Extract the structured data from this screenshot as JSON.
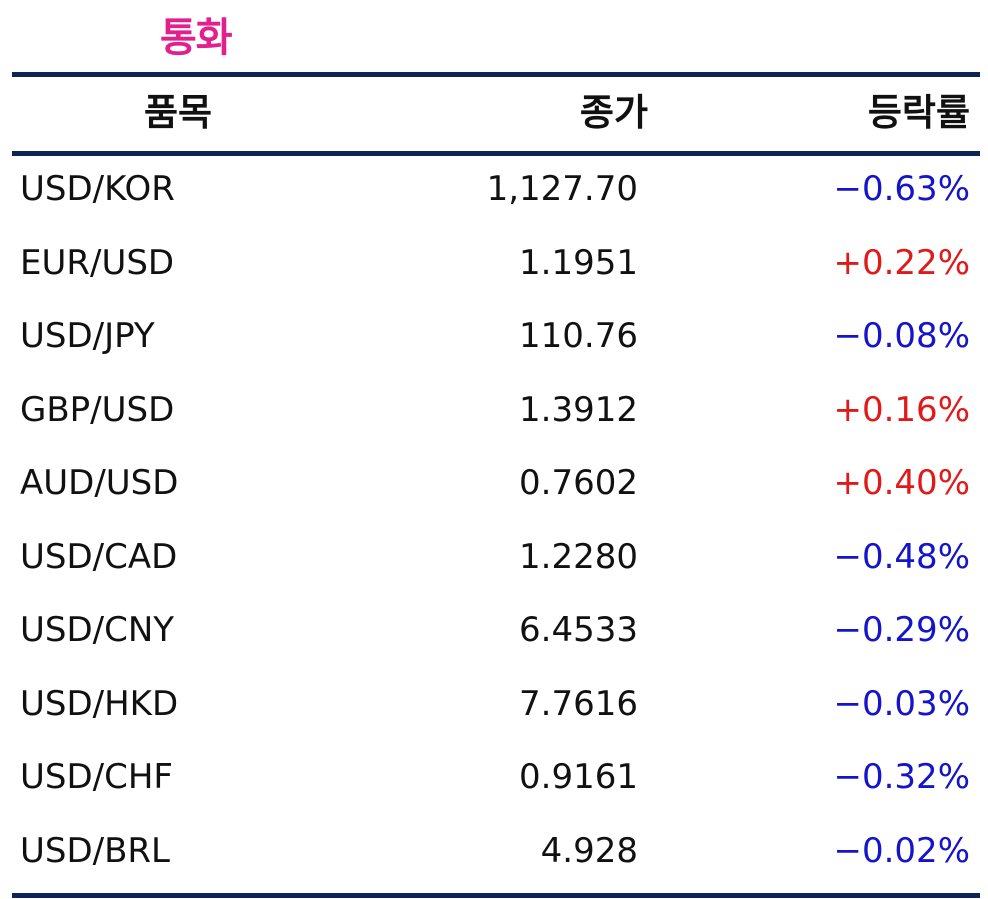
{
  "title": "통화",
  "colors": {
    "title": "#e2208d",
    "rule": "#0d2456",
    "up": "#e01a1a",
    "down": "#1414c8",
    "text": "#111111"
  },
  "headers": {
    "item": "품목",
    "price": "종가",
    "change": "등락률"
  },
  "rows": [
    {
      "item": "USD/KOR",
      "price": "1,127.70",
      "change": "−0.63%",
      "direction": "down"
    },
    {
      "item": "EUR/USD",
      "price": "1.1951",
      "change": "+0.22%",
      "direction": "up"
    },
    {
      "item": "USD/JPY",
      "price": "110.76",
      "change": "−0.08%",
      "direction": "down"
    },
    {
      "item": "GBP/USD",
      "price": "1.3912",
      "change": "+0.16%",
      "direction": "up"
    },
    {
      "item": "AUD/USD",
      "price": "0.7602",
      "change": "+0.40%",
      "direction": "up"
    },
    {
      "item": "USD/CAD",
      "price": "1.2280",
      "change": "−0.48%",
      "direction": "down"
    },
    {
      "item": "USD/CNY",
      "price": "6.4533",
      "change": "−0.29%",
      "direction": "down"
    },
    {
      "item": "USD/HKD",
      "price": "7.7616",
      "change": "−0.03%",
      "direction": "down"
    },
    {
      "item": "USD/CHF",
      "price": "0.9161",
      "change": "−0.32%",
      "direction": "down"
    },
    {
      "item": "USD/BRL",
      "price": "4.928",
      "change": "−0.02%",
      "direction": "down"
    }
  ]
}
